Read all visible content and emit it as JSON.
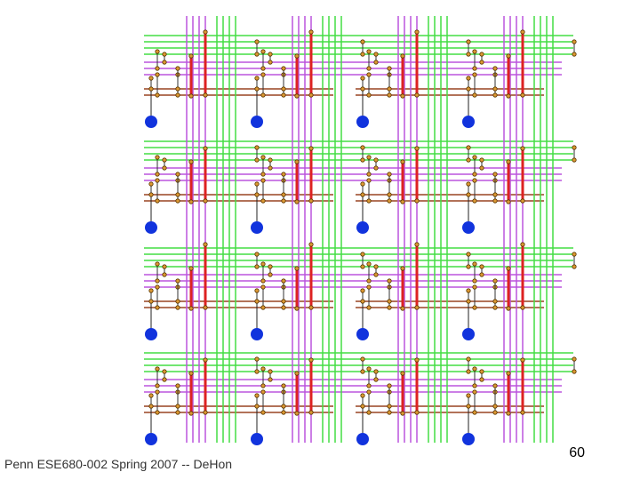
{
  "footer": {
    "text": "Penn ESE680-002 Spring 2007 -- DeHon",
    "page_number": "60"
  }
}
